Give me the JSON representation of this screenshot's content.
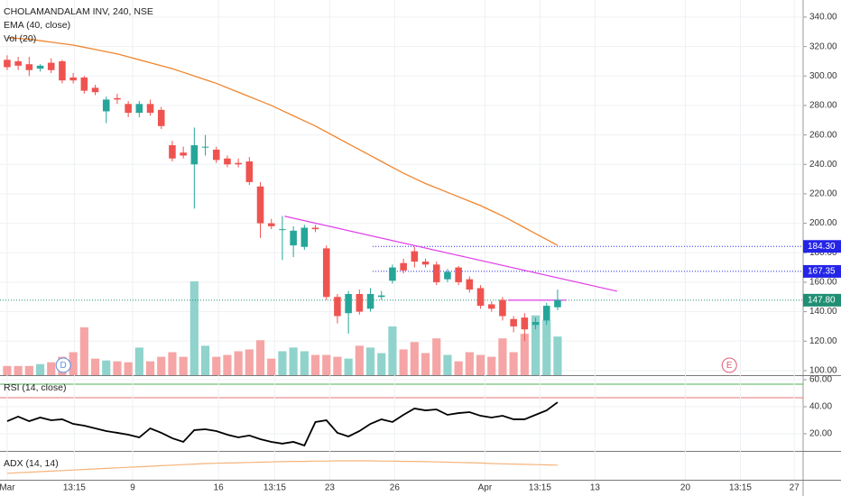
{
  "chart_data": [
    {
      "type": "candlestick",
      "title": "CHOLAMANDALAM INV, 240, NSE",
      "up_color": "#26a69a",
      "down_color": "#ef5350",
      "vol_up_color": "#8fd3cc",
      "vol_down_color": "#f5a5a5",
      "xlim": [
        -0.65,
        72.3
      ],
      "ylim": [
        96.9,
        351.6
      ],
      "xticks": [
        {
          "value": 0,
          "label": "Mar"
        },
        {
          "value": 6.1,
          "label": "13:15"
        },
        {
          "value": 11.4,
          "label": "9"
        },
        {
          "value": 19.2,
          "label": "16"
        },
        {
          "value": 24.3,
          "label": "13:15"
        },
        {
          "value": 29.3,
          "label": "23"
        },
        {
          "value": 35.2,
          "label": "26"
        },
        {
          "value": 43.4,
          "label": "Apr"
        },
        {
          "value": 48.4,
          "label": "13:15"
        },
        {
          "value": 53.4,
          "label": "13"
        },
        {
          "value": 61.6,
          "label": "20"
        },
        {
          "value": 66.6,
          "label": "13:15"
        },
        {
          "value": 71.5,
          "label": "27"
        }
      ],
      "yticks": [
        {
          "value": 100,
          "label": "100.00"
        },
        {
          "value": 120,
          "label": "120.00"
        },
        {
          "value": 140,
          "label": "140.00"
        },
        {
          "value": 160,
          "label": "160.00"
        },
        {
          "value": 180,
          "label": "180.00"
        },
        {
          "value": 200,
          "label": "200.00"
        },
        {
          "value": 220,
          "label": "220.00"
        },
        {
          "value": 240,
          "label": "240.00"
        },
        {
          "value": 260,
          "label": "260.00"
        },
        {
          "value": 280,
          "label": "280.00"
        },
        {
          "value": 300,
          "label": "300.00"
        },
        {
          "value": 320,
          "label": "320.00"
        },
        {
          "value": 340,
          "label": "340.00"
        }
      ],
      "grid": true,
      "open": [
        311,
        310,
        308,
        305,
        309,
        310,
        299,
        299,
        292,
        276,
        285,
        281,
        275,
        281,
        277,
        253,
        248,
        240,
        252,
        250,
        244,
        241,
        242,
        225,
        200,
        196,
        185,
        184,
        197,
        183,
        150,
        139,
        152,
        142,
        150,
        161,
        173,
        181,
        174,
        172,
        162,
        170,
        162,
        156,
        145,
        148,
        135,
        136,
        131,
        134,
        143
      ],
      "high": [
        314,
        313,
        313,
        308,
        312,
        311,
        302,
        300,
        294,
        286,
        288,
        283,
        283,
        284,
        279,
        256,
        252,
        265,
        260,
        252,
        246,
        244,
        245,
        228,
        203,
        205,
        198,
        199,
        199,
        185,
        152,
        154,
        155,
        156,
        154,
        172,
        176,
        184,
        176,
        174,
        169,
        171,
        164,
        158,
        147,
        150,
        137,
        139,
        136,
        146,
        155
      ],
      "low": [
        304,
        304,
        300,
        303,
        302,
        295,
        295,
        288,
        287,
        268,
        281,
        272,
        272,
        273,
        264,
        242,
        244,
        210,
        246,
        241,
        238,
        238,
        226,
        190,
        196,
        175,
        177,
        182,
        194,
        148,
        132,
        125,
        138,
        140,
        148,
        159,
        166,
        170,
        170,
        158,
        160,
        158,
        153,
        142,
        140,
        134,
        126,
        120,
        128,
        131,
        141
      ],
      "close": [
        306,
        307,
        304,
        307,
        304,
        297,
        297,
        290,
        289,
        284,
        284,
        275,
        281,
        275,
        266,
        244,
        246,
        253,
        252,
        243,
        240,
        240,
        228,
        200,
        198,
        196,
        195,
        197,
        196,
        150,
        137,
        152,
        140,
        152,
        151,
        170,
        168,
        174,
        172,
        160,
        167,
        160,
        155,
        144,
        142,
        137,
        130,
        128,
        133,
        144,
        148
      ],
      "ema": {
        "name": "EMA (40, close)",
        "color": "#f0852d",
        "values": [
          326,
          325.5,
          325,
          324,
          323,
          322,
          321,
          319.5,
          318,
          316.5,
          315,
          313,
          311,
          309,
          307,
          305,
          302.5,
          300,
          297.5,
          295,
          292,
          289,
          286,
          283,
          280,
          276.5,
          273,
          269.5,
          266,
          262,
          258,
          254,
          250,
          246,
          242,
          238,
          234,
          230.5,
          227,
          224,
          221,
          218,
          215,
          212,
          208.5,
          205,
          201,
          197,
          193,
          189,
          185
        ]
      },
      "volume": {
        "name": "Vol (20)",
        "ylim": [
          0,
          408
        ],
        "values": [
          10,
          10,
          10,
          12,
          14,
          20,
          25,
          52,
          18,
          16,
          15,
          14,
          30,
          15,
          20,
          25,
          20,
          102,
          32,
          20,
          22,
          26,
          28,
          38,
          18,
          26,
          30,
          26,
          22,
          22,
          20,
          18,
          32,
          30,
          24,
          53,
          28,
          36,
          24,
          40,
          22,
          15,
          25,
          22,
          20,
          40,
          25,
          45,
          65,
          60,
          42
        ]
      },
      "levels": [
        {
          "value": 184.3,
          "label": "184.30",
          "color": "#2424e8",
          "from": 33.2
        },
        {
          "value": 167.35,
          "label": "167.35",
          "color": "#2424e8",
          "from": 33.2
        },
        {
          "value": 147.8,
          "label": "147.80",
          "color": "#1f8f74",
          "from": -0.65
        }
      ],
      "trendlines": [
        {
          "x": [
            25.2,
            55.4
          ],
          "y": [
            204.8,
            153.9
          ],
          "color": "#e040e8"
        },
        {
          "x": [
            45.5,
            50.8
          ],
          "y": [
            147.8,
            147.8
          ],
          "color": "#e040e8"
        }
      ],
      "annotations": [
        {
          "label": "D",
          "x": 5.1,
          "color": "#5b8de0"
        },
        {
          "label": "E",
          "x": 65.6,
          "color": "#e05b7a"
        }
      ]
    },
    {
      "type": "line",
      "title": "RSI (14, close)",
      "color": "#000000",
      "ylim": [
        7.3,
        62.7
      ],
      "yticks": [
        {
          "value": 20,
          "label": "20.00"
        },
        {
          "value": 40,
          "label": "40.00"
        },
        {
          "value": 60,
          "label": "60.00"
        }
      ],
      "values": [
        29.3,
        32.7,
        29.3,
        32,
        30,
        30.7,
        27.3,
        26,
        24,
        22,
        20.7,
        19.3,
        17.3,
        24,
        20.7,
        16.7,
        14,
        22.7,
        23.3,
        22,
        19.3,
        17.3,
        18.7,
        16,
        14,
        12.7,
        14,
        11.3,
        28.7,
        30,
        20.7,
        18,
        22,
        27.3,
        30.7,
        28.7,
        34,
        38.7,
        37.3,
        38,
        34,
        35.3,
        36,
        33.3,
        32,
        33.3,
        30.7,
        30.7,
        34,
        37.3,
        43.3
      ]
    },
    {
      "type": "line",
      "title": "ADX (14, 14)",
      "color": "#f5b37a",
      "ylim": [
        0,
        50
      ],
      "values": [
        12,
        13,
        14,
        15,
        16,
        17,
        18,
        19,
        20,
        21,
        22,
        23,
        24,
        25,
        26,
        27,
        28,
        29,
        30,
        30.5,
        31,
        31.5,
        32,
        32.5,
        33,
        33.5,
        34,
        34,
        34.5,
        34.5,
        35,
        35,
        35,
        35,
        34.5,
        34.5,
        34,
        34,
        33.5,
        33,
        32.5,
        32,
        31.5,
        31,
        30,
        29.5,
        29,
        28.5,
        28,
        27.5,
        27
      ]
    }
  ]
}
